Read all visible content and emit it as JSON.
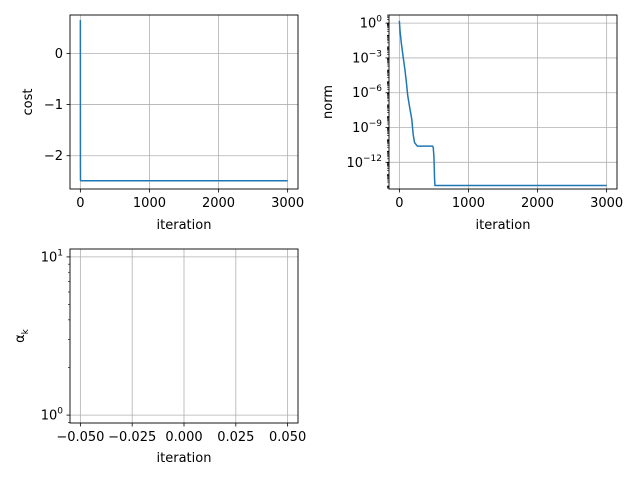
{
  "chart_data": [
    {
      "id": "cost",
      "type": "line",
      "xlabel": "iteration",
      "ylabel": "cost",
      "yscale": "linear",
      "xlim": [
        -150,
        3150
      ],
      "ylim": [
        -2.65,
        0.75
      ],
      "grid": true,
      "x_ticks": [
        0,
        1000,
        2000,
        3000
      ],
      "x_tick_labels": [
        "0",
        "1000",
        "2000",
        "3000"
      ],
      "y_ticks": [
        0,
        -1,
        -2
      ],
      "y_tick_labels": [
        "0",
        "−1",
        "−2"
      ],
      "series": [
        {
          "color": "#1f77b4",
          "x": [
            0,
            1,
            2,
            10,
            100,
            500,
            1000,
            2000,
            3000
          ],
          "y": [
            0.65,
            -2.2,
            -2.48,
            -2.49,
            -2.49,
            -2.49,
            -2.49,
            -2.49,
            -2.49
          ]
        }
      ]
    },
    {
      "id": "norm",
      "type": "line",
      "xlabel": "iteration",
      "ylabel": "norm",
      "yscale": "log",
      "xlim": [
        -150,
        3150
      ],
      "ylim_log10": [
        -14.3,
        0.7
      ],
      "grid": true,
      "x_ticks": [
        0,
        1000,
        2000,
        3000
      ],
      "x_tick_labels": [
        "0",
        "1000",
        "2000",
        "3000"
      ],
      "y_ticks_log10": [
        0,
        -3,
        -6,
        -9,
        -12
      ],
      "y_tick_bases": [
        "10",
        "10",
        "10",
        "10",
        "10"
      ],
      "y_tick_exponents": [
        "0",
        "−3",
        "−6",
        "−9",
        "−12"
      ],
      "series": [
        {
          "color": "#1f77b4",
          "x": [
            0,
            10,
            30,
            50,
            80,
            100,
            120,
            150,
            180,
            200,
            220,
            260,
            300,
            350,
            400,
            450,
            480,
            490,
            500,
            510,
            515,
            550,
            700,
            1000,
            1500,
            2000,
            2500,
            3000
          ],
          "log10y": [
            0.2,
            -0.7,
            -1.8,
            -2.7,
            -4.0,
            -5.0,
            -6.2,
            -7.3,
            -8.3,
            -9.6,
            -10.3,
            -10.6,
            -10.6,
            -10.6,
            -10.6,
            -10.6,
            -10.6,
            -10.7,
            -11.5,
            -13.5,
            -14.0,
            -14.0,
            -14.0,
            -14.0,
            -14.0,
            -14.0,
            -14.0,
            -14.0
          ]
        }
      ]
    },
    {
      "id": "alpha",
      "type": "line",
      "xlabel": "iteration",
      "ylabel": "α",
      "ylabel_subscript": "k",
      "yscale": "log",
      "xlim": [
        -0.055,
        0.055
      ],
      "ylim_log10": [
        -0.05,
        1.05
      ],
      "grid": true,
      "x_ticks": [
        -0.05,
        -0.025,
        0,
        0.025,
        0.05
      ],
      "x_tick_labels": [
        "−0.050",
        "−0.025",
        "0.000",
        "0.025",
        "0.050"
      ],
      "y_ticks_log10": [
        0,
        1
      ],
      "y_tick_bases": [
        "10",
        "10"
      ],
      "y_tick_exponents": [
        "0",
        "1"
      ],
      "series": []
    }
  ]
}
